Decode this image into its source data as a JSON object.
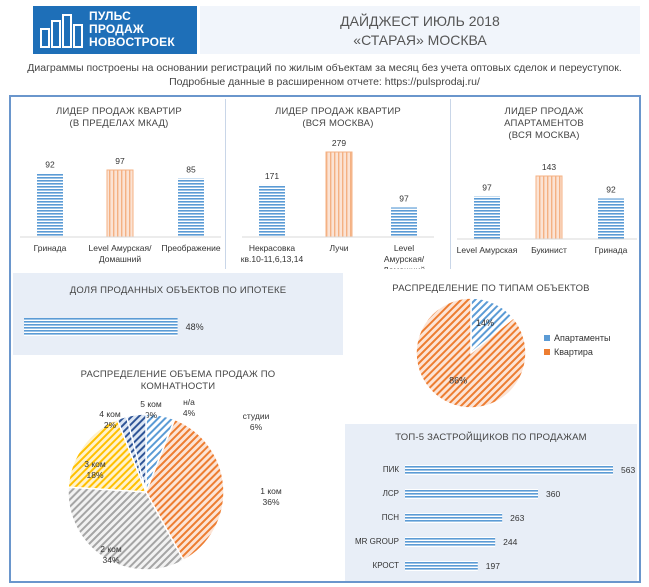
{
  "header": {
    "logo_line1": "ПУЛЬС",
    "logo_line2": "ПРОДАЖ",
    "logo_line3": "НОВОСТРОЕК",
    "title_line1": "ДАЙДЖЕСТ ИЮЛЬ 2018",
    "title_line2": "«СТАРАЯ» МОСКВА",
    "subtitle_line1": "Диаграммы построены на основании регистраций по жилым объектам за месяц без учета оптовых сделок и переуступок.",
    "subtitle_line2": "Подробные данные в расширенном отчете: https://pulsprodaj.ru/"
  },
  "colors": {
    "accent": "#1e6fb8",
    "frame": "#6a96cc",
    "bar_blue": "#5b9bd5",
    "bar_highlight": "#f8cbad",
    "orange": "#ed7d31",
    "grey": "#a5a5a5",
    "yellow": "#ffc000"
  },
  "chart_data": [
    {
      "type": "bar",
      "title": "ЛИДЕР ПРОДАЖ  КВАРТИР\n(В ПРЕДЕЛАХ МКАД)",
      "categories": [
        "Гринада",
        "Level Амурская/ Домашний",
        "Преображение"
      ],
      "values": [
        92,
        97,
        85
      ],
      "highlight_index": 1
    },
    {
      "type": "bar",
      "title": "ЛИДЕР ПРОДАЖ  КВАРТИР\n(ВСЯ МОСКВА)",
      "categories": [
        "Некрасовка кв.10-11,6,13,14",
        "Лучи",
        "Level Амурская/ Домашний"
      ],
      "values": [
        171,
        279,
        97
      ],
      "highlight_index": 1
    },
    {
      "type": "bar",
      "title": "ЛИДЕР ПРОДАЖ\nАПАРТАМЕНТОВ\n(ВСЯ МОСКВА)",
      "categories": [
        "Level Амурская",
        "Букинист",
        "Гринада"
      ],
      "values": [
        97,
        143,
        92
      ],
      "highlight_index": 1
    },
    {
      "type": "bar",
      "title": "ДОЛЯ ПРОДАННЫХ ОБЪЕКТОВ ПО ИПОТЕКЕ",
      "orientation": "horizontal",
      "categories": [
        ""
      ],
      "values": [
        48
      ],
      "value_labels": [
        "48%"
      ]
    },
    {
      "type": "pie",
      "title": "РАСПРЕДЕЛЕНИЕ ПО ТИПАМ ОБЪЕКТОВ",
      "categories": [
        "Апартаменты",
        "Квартира"
      ],
      "values": [
        14,
        86
      ],
      "value_labels": [
        "14%",
        "86%"
      ],
      "legend": "right"
    },
    {
      "type": "pie",
      "title": "РАСПРЕДЕЛЕНИЕ ОБЪЕМА ПРОДАЖ ПО\nКОМНАТНОСТИ",
      "categories": [
        "студии",
        "1 ком",
        "2 ком",
        "3 ком",
        "4 ком",
        "5 ком",
        "н/а"
      ],
      "values": [
        6,
        36,
        34,
        18,
        2,
        0,
        4
      ],
      "value_labels": [
        "6%",
        "36%",
        "34%",
        "18%",
        "2%",
        "0%",
        "4%"
      ]
    },
    {
      "type": "bar",
      "title": "ТОП-5 ЗАСТРОЙЩИКОВ ПО ПРОДАЖАМ",
      "orientation": "horizontal",
      "categories": [
        "ПИК",
        "ЛСР",
        "ПСН",
        "MR GROUP",
        "КРОСТ"
      ],
      "values": [
        563,
        360,
        263,
        244,
        197
      ]
    }
  ]
}
